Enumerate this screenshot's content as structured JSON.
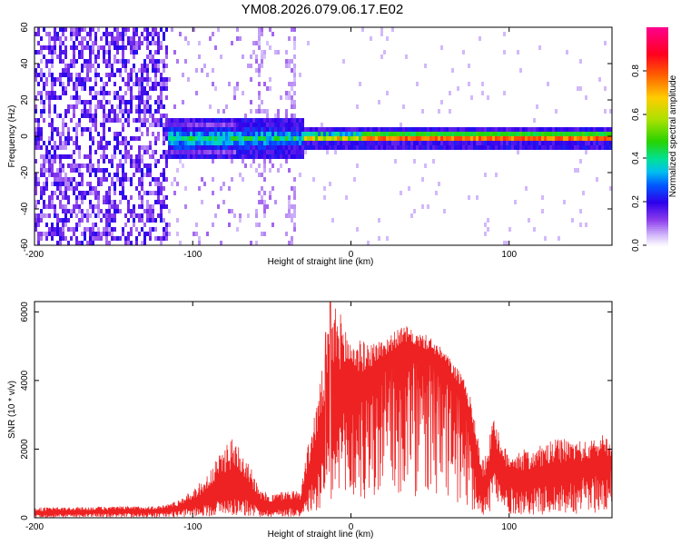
{
  "title": "YM08.2026.079.06.17.E02",
  "chart_data": [
    {
      "type": "heatmap",
      "xlabel": "Height of straight line (km)",
      "ylabel": "Frequency (Hz)",
      "xlim": [
        -200,
        165
      ],
      "ylim": [
        -60,
        60
      ],
      "xticks": [
        "-200",
        "-100",
        "0",
        "100"
      ],
      "yticks": [
        "60",
        "40",
        "20",
        "0",
        "-20",
        "-40",
        "-60"
      ],
      "colorbar": {
        "label": "Normalized spectral amplitude",
        "range": [
          0.0,
          1.0
        ],
        "ticks": [
          "0.0",
          "0.2",
          "0.4",
          "0.6",
          "0.8"
        ],
        "colors": [
          "#ffffff",
          "#c8a8f8",
          "#7a28e6",
          "#2a00e8",
          "#0060ff",
          "#00c8f0",
          "#00e090",
          "#30d000",
          "#b0e000",
          "#ffd000",
          "#ff6000",
          "#ff0020",
          "#ff0080"
        ]
      },
      "features": [
        {
          "name": "broadband noise",
          "x_range": [
            -200,
            -117
          ],
          "freq_range": [
            -60,
            60
          ],
          "amplitude": 0.18
        },
        {
          "name": "scattered noise",
          "x_range": [
            -117,
            -35
          ],
          "freq_range": [
            -60,
            60
          ],
          "amplitude": 0.08
        },
        {
          "name": "tone band",
          "x_range": [
            -117,
            165
          ],
          "center_hz": 0,
          "amplitude_peak": 0.95
        }
      ]
    },
    {
      "type": "line",
      "xlabel": "Height of straight line (km)",
      "ylabel": "SNR (10 * v/v)",
      "xlim": [
        -200,
        165
      ],
      "ylim": [
        0,
        6300
      ],
      "xticks": [
        "-200",
        "-100",
        "0",
        "100"
      ],
      "yticks": [
        "0",
        "2000",
        "4000",
        "6000"
      ],
      "color": "#ee2222",
      "envelope": {
        "x": [
          -200,
          -120,
          -110,
          -100,
          -90,
          -85,
          -78,
          -72,
          -65,
          -58,
          -50,
          -40,
          -32,
          -28,
          -20,
          -14,
          -10,
          0,
          10,
          20,
          30,
          35,
          40,
          50,
          60,
          70,
          75,
          79,
          83,
          86,
          90,
          95,
          100,
          110,
          120,
          130,
          140,
          150,
          160,
          165
        ],
        "y_base": [
          100,
          150,
          200,
          300,
          400,
          500,
          600,
          600,
          500,
          300,
          200,
          300,
          300,
          700,
          1500,
          2300,
          2800,
          3300,
          3600,
          4200,
          4600,
          4700,
          4700,
          4500,
          4200,
          3300,
          2800,
          1600,
          500,
          800,
          1800,
          1000,
          900,
          800,
          900,
          1000,
          1100,
          1200,
          1300,
          1400
        ],
        "y_top": [
          300,
          350,
          500,
          800,
          1300,
          1700,
          2300,
          2300,
          1800,
          800,
          700,
          800,
          800,
          1900,
          3800,
          5600,
          6300,
          5300,
          5100,
          5200,
          5500,
          5600,
          5400,
          5300,
          4800,
          4200,
          3600,
          2800,
          1700,
          1900,
          3200,
          2100,
          2000,
          2000,
          2100,
          2300,
          2300,
          2200,
          2500,
          2200
        ]
      },
      "spikes": [
        {
          "x": -13,
          "value": 6300
        },
        {
          "x": -16,
          "value": 5400
        }
      ]
    }
  ]
}
